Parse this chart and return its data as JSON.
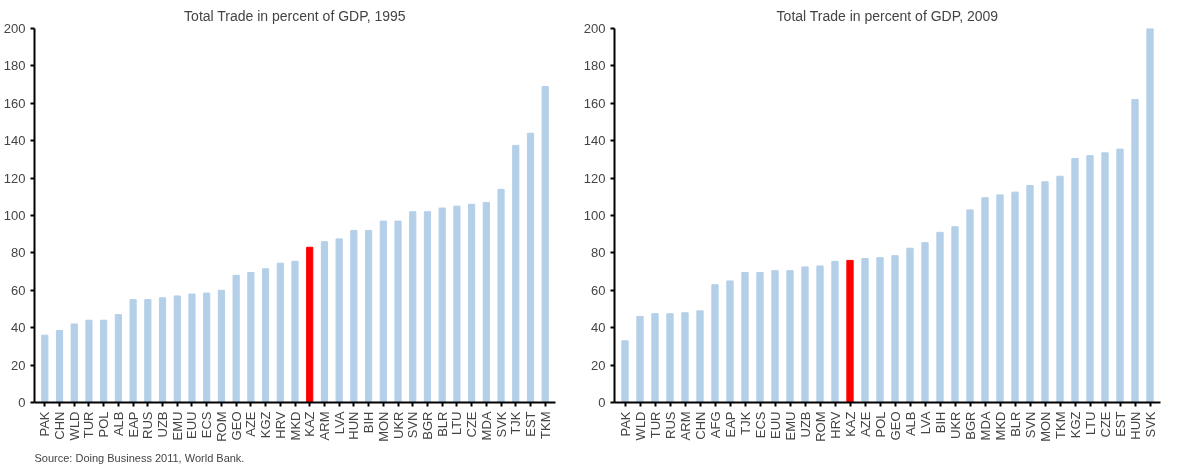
{
  "chart_data": [
    {
      "type": "bar",
      "title": "Total Trade in percent of GDP, 1995",
      "categories": [
        "PAK",
        "CHN",
        "WLD",
        "TUR",
        "POL",
        "ALB",
        "EAP",
        "RUS",
        "UZB",
        "EMU",
        "EUU",
        "ECS",
        "ROM",
        "GEO",
        "AZE",
        "KGZ",
        "HRV",
        "MKD",
        "KAZ",
        "ARM",
        "LVA",
        "HUN",
        "BIH",
        "MON",
        "UKR",
        "SVN",
        "BGR",
        "BLR",
        "LTU",
        "CZE",
        "MDA",
        "SVK",
        "TJK",
        "EST",
        "TKM"
      ],
      "values": [
        36,
        38.5,
        42,
        44,
        44,
        47,
        55,
        55,
        56,
        57,
        58,
        58.5,
        60,
        68,
        69.5,
        71.5,
        74.5,
        75.5,
        83,
        86,
        87.5,
        92,
        92,
        97,
        97,
        102,
        102,
        104,
        105,
        106,
        107,
        114,
        137.5,
        144,
        169
      ],
      "colors": [
        "#b4cfe8",
        "#b4cfe8",
        "#b4cfe8",
        "#b4cfe8",
        "#b4cfe8",
        "#b4cfe8",
        "#b4cfe8",
        "#b4cfe8",
        "#b4cfe8",
        "#b4cfe8",
        "#b4cfe8",
        "#b4cfe8",
        "#b4cfe8",
        "#b4cfe8",
        "#b4cfe8",
        "#b4cfe8",
        "#b4cfe8",
        "#b4cfe8",
        "#ff0000",
        "#b4cfe8",
        "#b4cfe8",
        "#b4cfe8",
        "#b4cfe8",
        "#b4cfe8",
        "#b4cfe8",
        "#b4cfe8",
        "#b4cfe8",
        "#b4cfe8",
        "#b4cfe8",
        "#b4cfe8",
        "#b4cfe8",
        "#b4cfe8",
        "#b4cfe8",
        "#b4cfe8",
        "#b4cfe8"
      ],
      "ylim": [
        0,
        200
      ],
      "yticks": [
        0,
        20,
        40,
        60,
        80,
        100,
        120,
        140,
        160,
        180,
        200
      ],
      "grid": false,
      "annotations": [
        "Source: Doing Business 2011, World Bank."
      ]
    },
    {
      "type": "bar",
      "title": "Total Trade in percent of GDP, 2009",
      "categories": [
        "PAK",
        "WLD",
        "TUR",
        "RUS",
        "ARM",
        "CHN",
        "AFG",
        "EAP",
        "TJK",
        "ECS",
        "EUU",
        "EMU",
        "UZB",
        "ROM",
        "HRV",
        "KAZ",
        "AZE",
        "POL",
        "GEO",
        "ALB",
        "LVA",
        "BIH",
        "UKR",
        "BGR",
        "MDA",
        "MKD",
        "BLR",
        "SVN",
        "MON",
        "TKM",
        "KGZ",
        "LTU",
        "CZE",
        "EST",
        "HUN",
        "SVK"
      ],
      "values": [
        33,
        46,
        47.5,
        47.5,
        48,
        49,
        63,
        65,
        69.5,
        69.5,
        70.5,
        70.5,
        72.5,
        73,
        75.5,
        76,
        77,
        77.5,
        78.5,
        82.5,
        85.5,
        91,
        94,
        103,
        109.5,
        111,
        112.5,
        116,
        118,
        121,
        130.5,
        132,
        133.5,
        135.5,
        162,
        200
      ],
      "colors": [
        "#b4cfe8",
        "#b4cfe8",
        "#b4cfe8",
        "#b4cfe8",
        "#b4cfe8",
        "#b4cfe8",
        "#b4cfe8",
        "#b4cfe8",
        "#b4cfe8",
        "#b4cfe8",
        "#b4cfe8",
        "#b4cfe8",
        "#b4cfe8",
        "#b4cfe8",
        "#b4cfe8",
        "#ff0000",
        "#b4cfe8",
        "#b4cfe8",
        "#b4cfe8",
        "#b4cfe8",
        "#b4cfe8",
        "#b4cfe8",
        "#b4cfe8",
        "#b4cfe8",
        "#b4cfe8",
        "#b4cfe8",
        "#b4cfe8",
        "#b4cfe8",
        "#b4cfe8",
        "#b4cfe8",
        "#b4cfe8",
        "#b4cfe8",
        "#b4cfe8",
        "#b4cfe8",
        "#b4cfe8",
        "#b4cfe8"
      ],
      "ylim": [
        0,
        200
      ],
      "yticks": [
        0,
        20,
        40,
        60,
        80,
        100,
        120,
        140,
        160,
        180,
        200
      ],
      "grid": false
    }
  ]
}
